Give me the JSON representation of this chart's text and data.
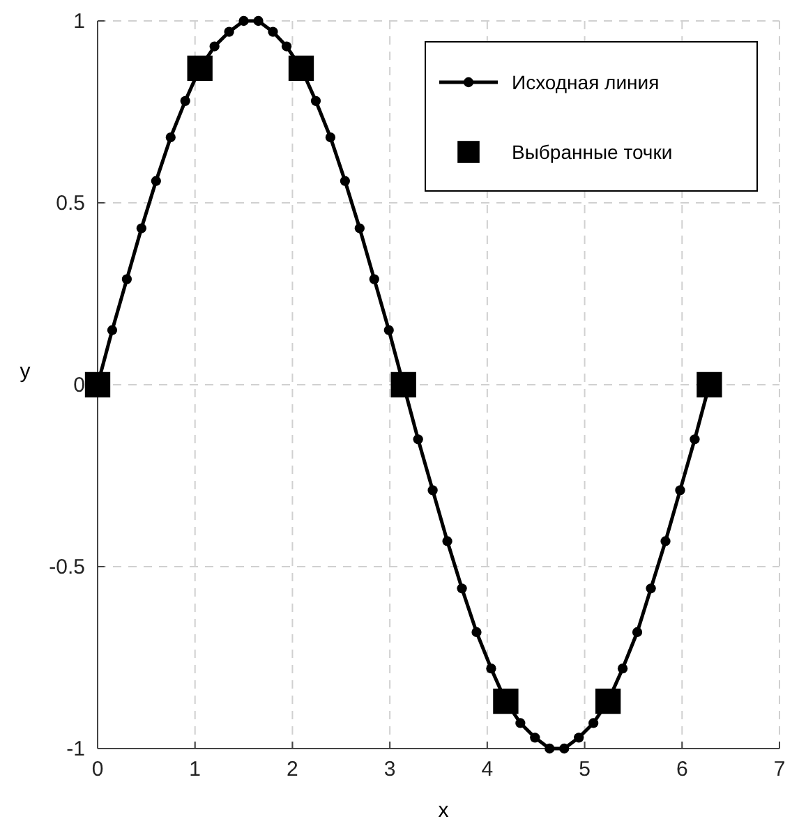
{
  "chart_data": {
    "type": "line",
    "xlabel": "x",
    "ylabel": "y",
    "xlim": [
      0,
      7
    ],
    "xticks": [
      0,
      1,
      2,
      3,
      4,
      5,
      6,
      7
    ],
    "ylim": [
      -1,
      1
    ],
    "yticks": [
      -1,
      -0.5,
      0,
      0.5,
      1
    ],
    "grid": true,
    "legend": "top right",
    "series": [
      {
        "name": "Исходная линия",
        "color": "#000000",
        "marker": "circle",
        "line_style": "solid",
        "x": [
          0,
          0.15,
          0.3,
          0.45,
          0.6,
          0.75,
          0.9,
          1.05,
          1.2,
          1.35,
          1.5,
          1.65,
          1.8,
          1.94,
          2.09,
          2.24,
          2.39,
          2.54,
          2.69,
          2.84,
          2.99,
          3.14,
          3.29,
          3.44,
          3.59,
          3.74,
          3.89,
          4.04,
          4.19,
          4.34,
          4.49,
          4.64,
          4.79,
          4.94,
          5.09,
          5.24,
          5.39,
          5.54,
          5.68,
          5.83,
          5.98,
          6.13,
          6.28
        ],
        "values": [
          0,
          0.15,
          0.29,
          0.43,
          0.56,
          0.68,
          0.78,
          0.87,
          0.93,
          0.97,
          1,
          1,
          0.97,
          0.93,
          0.87,
          0.78,
          0.68,
          0.56,
          0.43,
          0.29,
          0.15,
          0,
          -0.15,
          -0.29,
          -0.43,
          -0.56,
          -0.68,
          -0.78,
          -0.87,
          -0.93,
          -0.97,
          -1,
          -1,
          -0.97,
          -0.93,
          -0.87,
          -0.78,
          -0.68,
          -0.56,
          -0.43,
          -0.29,
          -0.15,
          0
        ]
      },
      {
        "name": "Выбранные точки",
        "type": "scatter",
        "color": "#000000",
        "marker": "square",
        "x": [
          0,
          1.05,
          2.09,
          3.14,
          4.19,
          5.24,
          6.28
        ],
        "values": [
          0,
          0.87,
          0.87,
          0,
          -0.87,
          -0.87,
          0
        ]
      }
    ]
  }
}
